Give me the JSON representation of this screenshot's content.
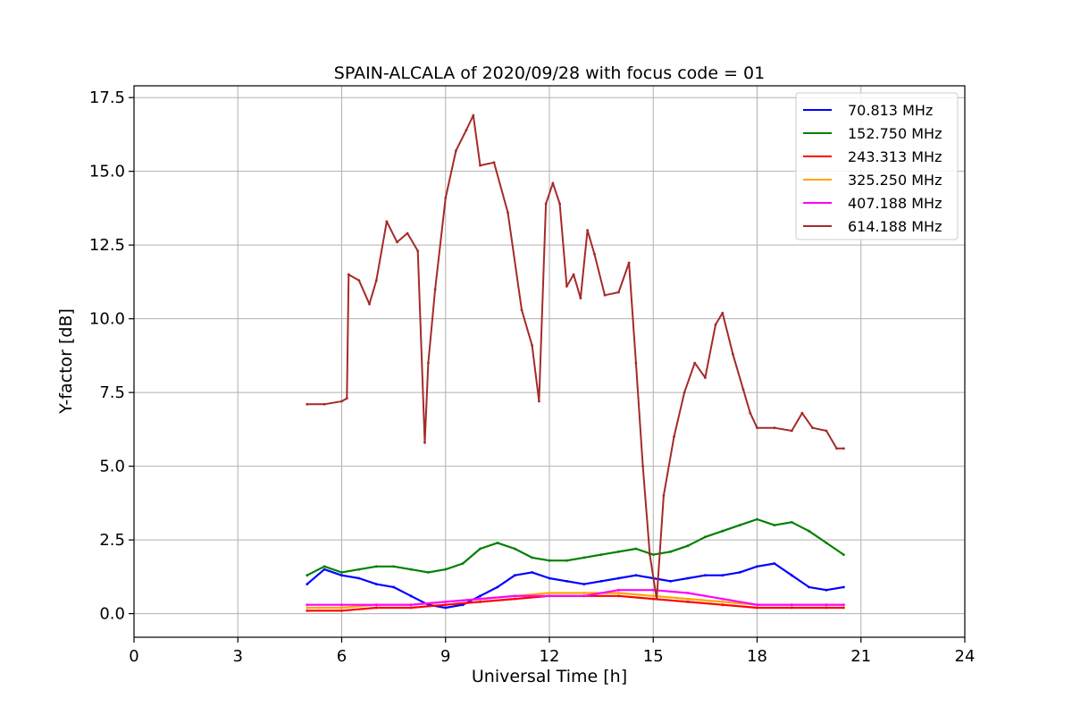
{
  "chart_data": {
    "type": "line",
    "title": "SPAIN-ALCALA of 2020/09/28 with focus code = 01",
    "xlabel": "Universal Time [h]",
    "ylabel": "Y-factor [dB]",
    "xlim": [
      0,
      24
    ],
    "ylim": [
      -0.8,
      17.9
    ],
    "x_ticks": [
      0,
      3,
      6,
      9,
      12,
      15,
      18,
      21,
      24
    ],
    "x_tick_labels": [
      "0",
      "3",
      "6",
      "9",
      "12",
      "15",
      "18",
      "21",
      "24"
    ],
    "y_ticks": [
      0.0,
      2.5,
      5.0,
      7.5,
      10.0,
      12.5,
      15.0,
      17.5
    ],
    "y_tick_labels": [
      "0.0",
      "2.5",
      "5.0",
      "7.5",
      "10.0",
      "12.5",
      "15.0",
      "17.5"
    ],
    "grid": true,
    "legend_position": "top-right",
    "series": [
      {
        "name": " 70.813 MHz",
        "color": "#0000ff",
        "x": [
          5.0,
          5.5,
          6.0,
          6.5,
          7.0,
          7.5,
          8.0,
          8.5,
          9.0,
          9.5,
          10.0,
          10.5,
          11.0,
          11.5,
          12.0,
          12.5,
          13.0,
          13.5,
          14.0,
          14.5,
          15.0,
          15.5,
          16.0,
          16.5,
          17.0,
          17.5,
          18.0,
          18.5,
          19.0,
          19.5,
          20.0,
          20.5
        ],
        "y": [
          1.0,
          1.5,
          1.3,
          1.2,
          1.0,
          0.9,
          0.6,
          0.3,
          0.2,
          0.3,
          0.6,
          0.9,
          1.3,
          1.4,
          1.2,
          1.1,
          1.0,
          1.1,
          1.2,
          1.3,
          1.2,
          1.1,
          1.2,
          1.3,
          1.3,
          1.4,
          1.6,
          1.7,
          1.3,
          0.9,
          0.8,
          0.9
        ]
      },
      {
        "name": "152.750 MHz",
        "color": "#008000",
        "x": [
          5.0,
          5.5,
          6.0,
          6.5,
          7.0,
          7.5,
          8.0,
          8.5,
          9.0,
          9.5,
          10.0,
          10.5,
          11.0,
          11.5,
          12.0,
          12.5,
          13.0,
          13.5,
          14.0,
          14.5,
          15.0,
          15.5,
          16.0,
          16.5,
          17.0,
          17.5,
          18.0,
          18.5,
          19.0,
          19.5,
          20.0,
          20.5
        ],
        "y": [
          1.3,
          1.6,
          1.4,
          1.5,
          1.6,
          1.6,
          1.5,
          1.4,
          1.5,
          1.7,
          2.2,
          2.4,
          2.2,
          1.9,
          1.8,
          1.8,
          1.9,
          2.0,
          2.1,
          2.2,
          2.0,
          2.1,
          2.3,
          2.6,
          2.8,
          3.0,
          3.2,
          3.0,
          3.1,
          2.8,
          2.4,
          2.0
        ]
      },
      {
        "name": "243.313 MHz",
        "color": "#ff0000",
        "x": [
          5.0,
          6.0,
          7.0,
          8.0,
          9.0,
          10.0,
          11.0,
          12.0,
          13.0,
          14.0,
          15.0,
          16.0,
          17.0,
          18.0,
          19.0,
          20.0,
          20.5
        ],
        "y": [
          0.1,
          0.1,
          0.2,
          0.2,
          0.3,
          0.4,
          0.5,
          0.6,
          0.6,
          0.6,
          0.5,
          0.4,
          0.3,
          0.2,
          0.2,
          0.2,
          0.2
        ]
      },
      {
        "name": "325.250 MHz",
        "color": "#ffa500",
        "x": [
          5.0,
          6.0,
          7.0,
          8.0,
          9.0,
          10.0,
          11.0,
          12.0,
          13.0,
          14.0,
          15.0,
          16.0,
          17.0,
          18.0,
          19.0,
          20.0,
          20.5
        ],
        "y": [
          0.2,
          0.2,
          0.3,
          0.3,
          0.4,
          0.5,
          0.6,
          0.7,
          0.7,
          0.7,
          0.6,
          0.5,
          0.4,
          0.3,
          0.3,
          0.3,
          0.3
        ]
      },
      {
        "name": "407.188 MHz",
        "color": "#ff00ff",
        "x": [
          5.0,
          6.0,
          7.0,
          8.0,
          9.0,
          10.0,
          11.0,
          12.0,
          13.0,
          14.0,
          15.0,
          16.0,
          17.0,
          18.0,
          19.0,
          20.0,
          20.5
        ],
        "y": [
          0.3,
          0.3,
          0.3,
          0.3,
          0.4,
          0.5,
          0.6,
          0.6,
          0.6,
          0.8,
          0.8,
          0.7,
          0.5,
          0.3,
          0.3,
          0.3,
          0.3
        ]
      },
      {
        "name": "614.188 MHz",
        "color": "#a52a2a",
        "x": [
          5.0,
          5.5,
          6.0,
          6.15,
          6.2,
          6.5,
          6.8,
          7.0,
          7.3,
          7.6,
          7.9,
          8.2,
          8.4,
          8.5,
          8.7,
          9.0,
          9.3,
          9.6,
          9.8,
          10.0,
          10.4,
          10.8,
          11.2,
          11.5,
          11.7,
          11.9,
          12.1,
          12.3,
          12.5,
          12.7,
          12.9,
          13.1,
          13.3,
          13.6,
          14.0,
          14.3,
          14.5,
          14.7,
          14.9,
          15.1,
          15.3,
          15.6,
          15.9,
          16.2,
          16.5,
          16.8,
          17.0,
          17.3,
          17.6,
          17.8,
          18.0,
          18.5,
          19.0,
          19.3,
          19.6,
          20.0,
          20.3,
          20.5
        ],
        "y": [
          7.1,
          7.1,
          7.2,
          7.3,
          11.5,
          11.3,
          10.5,
          11.3,
          13.3,
          12.6,
          12.9,
          12.3,
          5.8,
          8.5,
          11.0,
          14.1,
          15.7,
          16.4,
          16.9,
          15.2,
          15.3,
          13.6,
          10.3,
          9.1,
          7.2,
          13.9,
          14.6,
          13.9,
          11.1,
          11.5,
          10.7,
          13.0,
          12.2,
          10.8,
          10.9,
          11.9,
          8.5,
          5.0,
          2.0,
          0.5,
          4.0,
          6.0,
          7.5,
          8.5,
          8.0,
          9.8,
          10.2,
          8.8,
          7.6,
          6.8,
          6.3,
          6.3,
          6.2,
          6.8,
          6.3,
          6.2,
          5.6,
          5.6
        ]
      }
    ]
  }
}
